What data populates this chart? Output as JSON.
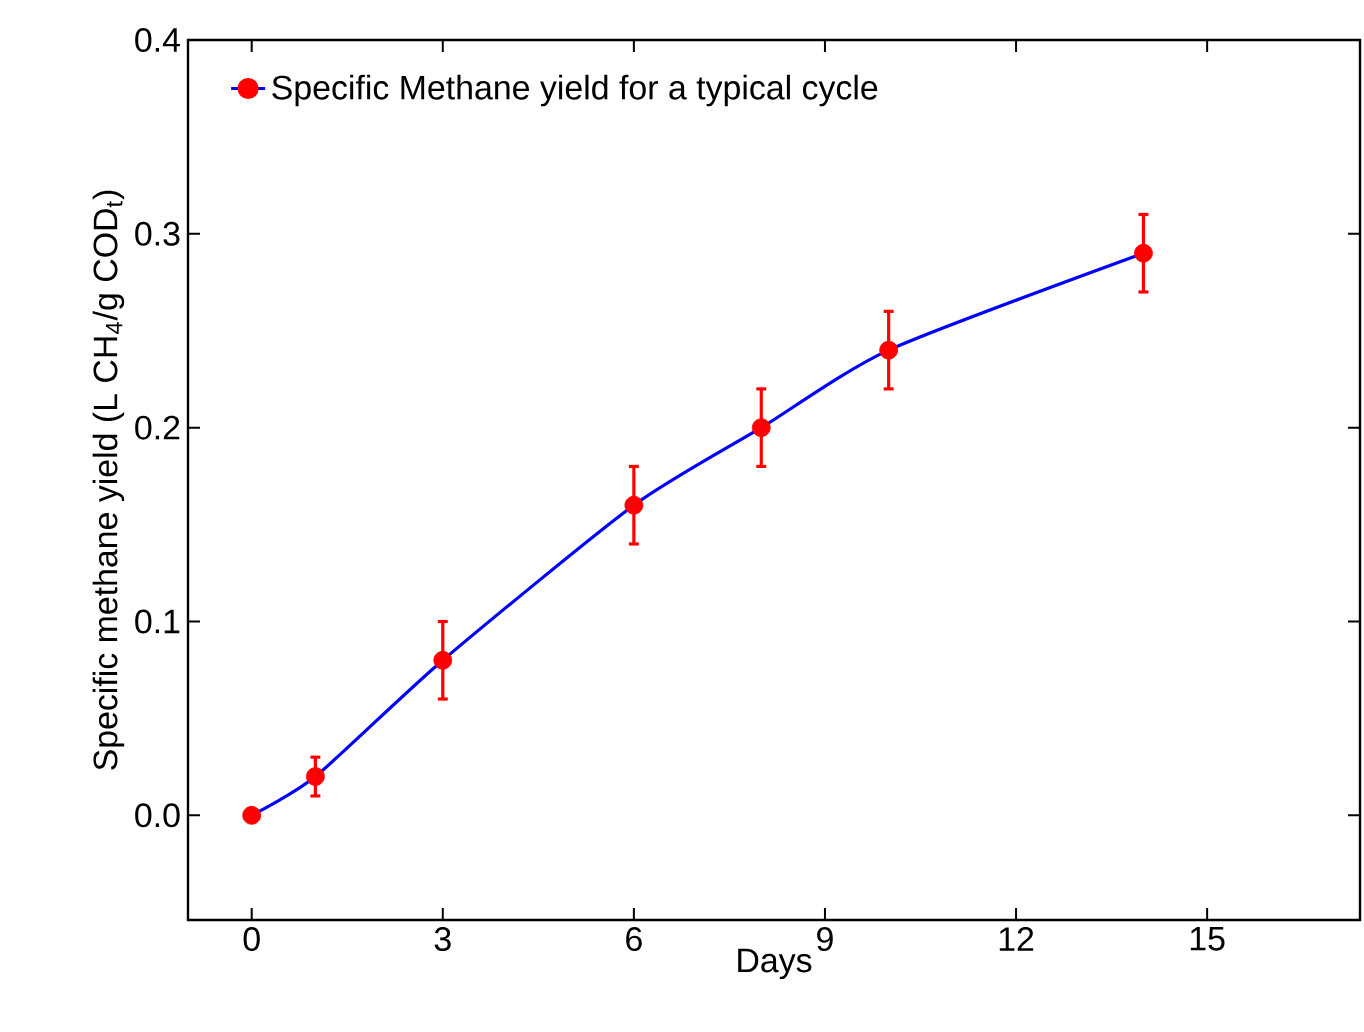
{
  "chart_data": {
    "type": "line",
    "xlabel": "Days",
    "ylabel": "Specific methane yield (L CH$_{4}$/g COD$_{t}$)",
    "x": [
      0,
      1,
      3,
      6,
      8,
      10,
      14
    ],
    "series": [
      {
        "name": "Specific Methane yield for a typical cycle",
        "color": "#0000ff",
        "colors": [
          "#ff0000",
          "#ff0000",
          "#ff0000",
          "#ff0000",
          "#ff0000",
          "#ff0000",
          "#ff0000"
        ],
        "values": [
          0,
          0.02,
          0.08,
          0.16,
          0.2,
          0.24,
          0.29
        ],
        "errors": [
          0,
          0.01,
          0.02,
          0.02,
          0.02,
          0.02,
          0.02
        ]
      }
    ],
    "xlim": [
      -1,
      17.4
    ],
    "ylim": [
      -0.054,
      0.4
    ],
    "xticks": [
      0,
      3,
      6,
      9,
      12,
      15
    ],
    "yticks": [
      {
        "value": 0,
        "label": "0.0"
      },
      {
        "value": 0.1,
        "label": "0.1"
      },
      {
        "value": 0.2,
        "label": "0.2"
      },
      {
        "value": 0.3,
        "label": "0.3"
      },
      {
        "value": 0.4,
        "label": "0.4"
      }
    ],
    "legend": "top left",
    "marker": "circle",
    "line_style": "solid",
    "grid": false
  }
}
